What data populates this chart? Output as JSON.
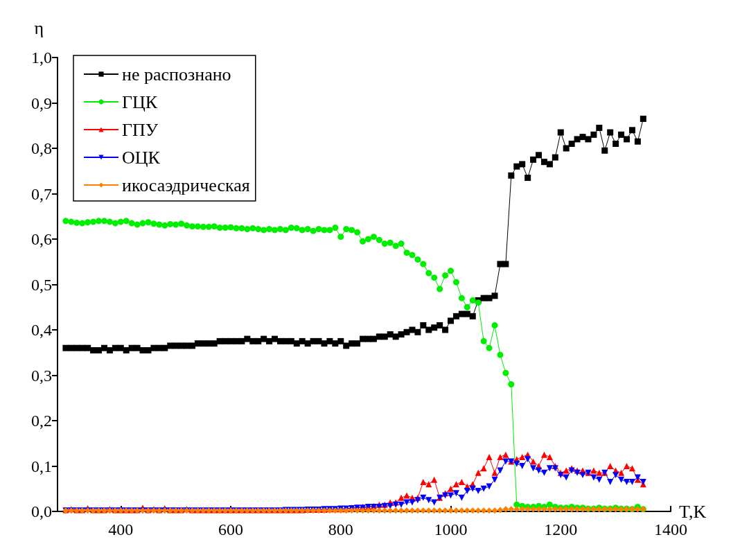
{
  "chart_data": {
    "type": "line",
    "xlabel": "T,K",
    "ylabel": "η",
    "xlim": [
      285,
      1400
    ],
    "xticks": [
      400,
      600,
      800,
      1000,
      1200,
      1400
    ],
    "ylim": [
      0,
      1
    ],
    "yticks": [
      {
        "value": 0,
        "label": "0,0"
      },
      {
        "value": 0.1,
        "label": "0,1"
      },
      {
        "value": 0.2,
        "label": "0,2"
      },
      {
        "value": 0.3,
        "label": "0,3"
      },
      {
        "value": 0.4,
        "label": "0,4"
      },
      {
        "value": 0.5,
        "label": "0,5"
      },
      {
        "value": 0.6,
        "label": "0,6"
      },
      {
        "value": 0.7,
        "label": "0,7"
      },
      {
        "value": 0.8,
        "label": "0,8"
      },
      {
        "value": 0.9,
        "label": "0,9"
      },
      {
        "value": 1,
        "label": "1,0"
      }
    ],
    "grid": false,
    "legend": "top left",
    "line_style": "solid",
    "x": [
      300,
      310,
      320,
      330,
      340,
      350,
      360,
      370,
      380,
      390,
      400,
      410,
      420,
      430,
      440,
      450,
      460,
      470,
      480,
      490,
      500,
      510,
      520,
      530,
      540,
      550,
      560,
      570,
      580,
      590,
      600,
      610,
      620,
      630,
      640,
      650,
      660,
      670,
      680,
      690,
      700,
      710,
      720,
      730,
      740,
      750,
      760,
      770,
      780,
      790,
      800,
      810,
      820,
      830,
      840,
      850,
      860,
      870,
      880,
      890,
      900,
      910,
      920,
      930,
      940,
      950,
      960,
      970,
      980,
      990,
      1000,
      1010,
      1020,
      1030,
      1040,
      1050,
      1060,
      1070,
      1080,
      1090,
      1100,
      1110,
      1120,
      1130,
      1140,
      1150,
      1160,
      1170,
      1180,
      1190,
      1200,
      1210,
      1220,
      1230,
      1240,
      1250,
      1260,
      1270,
      1280,
      1290,
      1300,
      1310,
      1320,
      1330,
      1340,
      1350
    ],
    "series": [
      {
        "name": "не распознано",
        "color": "#000000",
        "marker": "square",
        "values": [
          0.36,
          0.36,
          0.36,
          0.36,
          0.36,
          0.355,
          0.355,
          0.36,
          0.355,
          0.36,
          0.36,
          0.355,
          0.36,
          0.36,
          0.355,
          0.355,
          0.36,
          0.36,
          0.36,
          0.365,
          0.365,
          0.365,
          0.365,
          0.365,
          0.37,
          0.37,
          0.37,
          0.37,
          0.375,
          0.375,
          0.375,
          0.375,
          0.375,
          0.38,
          0.375,
          0.375,
          0.38,
          0.375,
          0.38,
          0.375,
          0.375,
          0.375,
          0.37,
          0.375,
          0.37,
          0.375,
          0.375,
          0.37,
          0.375,
          0.37,
          0.375,
          0.365,
          0.37,
          0.37,
          0.38,
          0.38,
          0.38,
          0.385,
          0.385,
          0.39,
          0.385,
          0.39,
          0.395,
          0.4,
          0.395,
          0.41,
          0.4,
          0.405,
          0.41,
          0.4,
          0.42,
          0.43,
          0.435,
          0.435,
          0.43,
          0.465,
          0.47,
          0.47,
          0.475,
          0.545,
          0.545,
          0.74,
          0.76,
          0.765,
          0.735,
          0.775,
          0.785,
          0.77,
          0.765,
          0.78,
          0.835,
          0.8,
          0.81,
          0.82,
          0.825,
          0.82,
          0.83,
          0.845,
          0.795,
          0.835,
          0.81,
          0.83,
          0.82,
          0.84,
          0.815,
          0.865
        ]
      },
      {
        "name": "ГЦК",
        "color": "#00ee00",
        "marker": "circle",
        "values": [
          0.64,
          0.638,
          0.636,
          0.635,
          0.637,
          0.638,
          0.64,
          0.64,
          0.638,
          0.635,
          0.638,
          0.64,
          0.635,
          0.632,
          0.635,
          0.637,
          0.634,
          0.632,
          0.63,
          0.633,
          0.632,
          0.634,
          0.63,
          0.628,
          0.628,
          0.627,
          0.627,
          0.628,
          0.625,
          0.625,
          0.626,
          0.624,
          0.624,
          0.622,
          0.624,
          0.622,
          0.62,
          0.622,
          0.62,
          0.622,
          0.62,
          0.625,
          0.624,
          0.62,
          0.622,
          0.618,
          0.622,
          0.62,
          0.62,
          0.625,
          0.605,
          0.622,
          0.62,
          0.615,
          0.595,
          0.6,
          0.605,
          0.598,
          0.59,
          0.592,
          0.585,
          0.59,
          0.57,
          0.565,
          0.555,
          0.545,
          0.525,
          0.515,
          0.49,
          0.52,
          0.53,
          0.505,
          0.47,
          0.45,
          0.465,
          0.46,
          0.375,
          0.36,
          0.41,
          0.345,
          0.305,
          0.28,
          0.015,
          0.012,
          0.01,
          0.01,
          0.012,
          0.01,
          0.015,
          0.01,
          0.008,
          0.008,
          0.01,
          0.008,
          0.008,
          0.006,
          0.006,
          0.008,
          0.006,
          0.006,
          0.008,
          0.006,
          0.006,
          0.005,
          0.01,
          0.005
        ]
      },
      {
        "name": "ГПУ",
        "color": "#ff0000",
        "marker": "triangle",
        "values": [
          0.003,
          0.005,
          0.003,
          0.003,
          0.007,
          0.003,
          0.003,
          0.003,
          0.005,
          0.003,
          0.003,
          0.003,
          0.003,
          0.003,
          0.008,
          0.003,
          0.005,
          0.003,
          0.007,
          0.003,
          0.003,
          0.003,
          0.005,
          0.003,
          0.003,
          0.003,
          0.003,
          0.003,
          0.003,
          0.003,
          0.003,
          0.003,
          0.003,
          0.003,
          0.003,
          0.003,
          0.003,
          0.003,
          0.003,
          0.003,
          0.003,
          0.003,
          0.003,
          0.003,
          0.004,
          0.004,
          0.004,
          0.004,
          0.005,
          0.005,
          0.005,
          0.005,
          0.008,
          0.008,
          0.01,
          0.01,
          0.012,
          0.015,
          0.015,
          0.02,
          0.02,
          0.03,
          0.035,
          0.03,
          0.03,
          0.065,
          0.06,
          0.07,
          0.03,
          0.04,
          0.05,
          0.06,
          0.065,
          0.055,
          0.06,
          0.085,
          0.095,
          0.12,
          0.085,
          0.12,
          0.125,
          0.11,
          0.115,
          0.12,
          0.125,
          0.11,
          0.1,
          0.125,
          0.12,
          0.1,
          0.085,
          0.09,
          0.095,
          0.09,
          0.09,
          0.085,
          0.09,
          0.085,
          0.085,
          0.1,
          0.09,
          0.085,
          0.1,
          0.095,
          0.07,
          0.06
        ]
      },
      {
        "name": "ОЦК",
        "color": "#0000ff",
        "marker": "triangle-down",
        "values": [
          0.002,
          0.002,
          0.002,
          0.002,
          0.002,
          0.002,
          0.002,
          0.002,
          0.002,
          0.002,
          0.002,
          0.002,
          0.002,
          0.002,
          0.002,
          0.002,
          0.002,
          0.002,
          0.002,
          0.002,
          0.002,
          0.002,
          0.002,
          0.002,
          0.002,
          0.002,
          0.002,
          0.002,
          0.002,
          0.002,
          0.002,
          0.002,
          0.002,
          0.002,
          0.002,
          0.002,
          0.002,
          0.002,
          0.002,
          0.002,
          0.003,
          0.003,
          0.003,
          0.003,
          0.004,
          0.004,
          0.004,
          0.005,
          0.005,
          0.005,
          0.006,
          0.006,
          0.007,
          0.008,
          0.008,
          0.01,
          0.01,
          0.01,
          0.012,
          0.012,
          0.015,
          0.015,
          0.02,
          0.02,
          0.025,
          0.03,
          0.025,
          0.02,
          0.03,
          0.035,
          0.035,
          0.04,
          0.03,
          0.045,
          0.05,
          0.045,
          0.05,
          0.055,
          0.07,
          0.09,
          0.11,
          0.11,
          0.105,
          0.1,
          0.115,
          0.095,
          0.09,
          0.085,
          0.095,
          0.095,
          0.08,
          0.075,
          0.09,
          0.085,
          0.08,
          0.085,
          0.075,
          0.07,
          0.085,
          0.065,
          0.08,
          0.07,
          0.065,
          0.065,
          0.075,
          0.065
        ]
      },
      {
        "name": "икосаэдрическая",
        "color": "#ff8000",
        "marker": "diamond",
        "values": [
          0.002,
          0.002,
          0.002,
          0.002,
          0.002,
          0.002,
          0.002,
          0.002,
          0.002,
          0.002,
          0.002,
          0.002,
          0.002,
          0.002,
          0.002,
          0.002,
          0.002,
          0.002,
          0.002,
          0.002,
          0.002,
          0.002,
          0.002,
          0.002,
          0.002,
          0.002,
          0.002,
          0.002,
          0.002,
          0.002,
          0.002,
          0.002,
          0.002,
          0.002,
          0.002,
          0.002,
          0.002,
          0.002,
          0.002,
          0.002,
          0.002,
          0.002,
          0.002,
          0.002,
          0.002,
          0.002,
          0.002,
          0.002,
          0.002,
          0.002,
          0.002,
          0.002,
          0.002,
          0.002,
          0.002,
          0.002,
          0.002,
          0.002,
          0.002,
          0.002,
          0.002,
          0.002,
          0.002,
          0.002,
          0.002,
          0.002,
          0.002,
          0.002,
          0.002,
          0.002,
          0.002,
          0.002,
          0.002,
          0.002,
          0.002,
          0.002,
          0.002,
          0.002,
          0.002,
          0.003,
          0.005,
          0.005,
          0.005,
          0.005,
          0.005,
          0.005,
          0.005,
          0.005,
          0.005,
          0.005,
          0.005,
          0.005,
          0.005,
          0.005,
          0.005,
          0.005,
          0.005,
          0.005,
          0.005,
          0.005,
          0.005,
          0.005,
          0.005,
          0.005,
          0.005,
          0.005
        ]
      }
    ]
  }
}
